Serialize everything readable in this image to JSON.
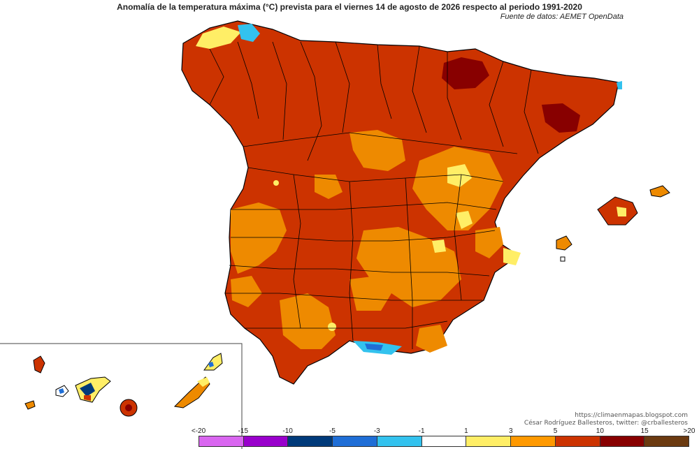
{
  "header": {
    "title": "Anomalía de la temperatura máxima (°C) prevista para el viernes 14 de agosto de 2026 respecto al periodo 1991-2020",
    "source": "Fuente de datos: AEMET OpenData"
  },
  "credits": {
    "line1": "https://climaenmapas.blogspot.com",
    "line2": "César Rodríguez Ballesteros, twitter: @crballesteros"
  },
  "legend": {
    "ticks": [
      "<-20",
      "-15",
      "-10",
      "-5",
      "-3",
      "-1",
      "1",
      "3",
      "5",
      "10",
      "15",
      ">20"
    ],
    "colors": [
      "#d966f0",
      "#9900cc",
      "#003a7a",
      "#1f6ed6",
      "#33c2ee",
      "#ffffff",
      "#ffee66",
      "#ff9900",
      "#cc3300",
      "#880000",
      "#6b3a10"
    ]
  },
  "colors": {
    "very_high": "#cc3300",
    "high": "#ee8a00",
    "warm": "#ffee66",
    "extreme": "#880000",
    "cool": "#33c2ee",
    "cold": "#1f6ed6",
    "border": "#000000"
  }
}
